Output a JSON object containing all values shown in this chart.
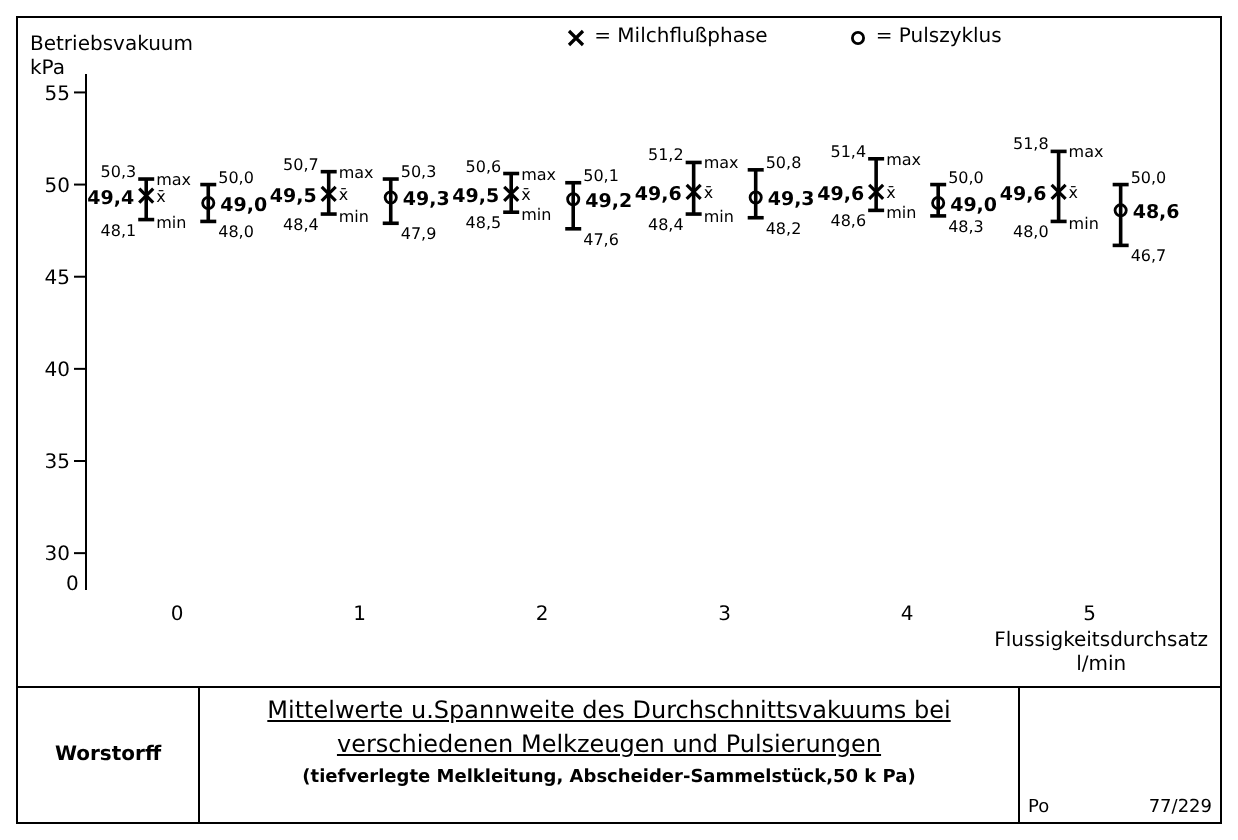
{
  "chart_data": {
    "type": "scatter",
    "title": "Mittelwerte u.Spannweite des Durchschnittsvakuums bei verschiedenen Melkzeugen und Pulsierungen",
    "subtitle": "(tiefverlegte Melkleitung, Abscheider-Sammelstück,50 k Pa)",
    "ylabel": "Betriebsvakuum\nkPa",
    "xlabel": "Flussigkeitsdurchsatz\nl/min",
    "categories": [
      "0",
      "1",
      "2",
      "3",
      "4",
      "5"
    ],
    "series": [
      {
        "name": "= Milchflußphase",
        "color": "#000000",
        "marker": "cross",
        "values": [
          49.4,
          49.5,
          49.5,
          49.6,
          49.6,
          49.6
        ],
        "errors": [
          [
            48.1,
            50.3
          ],
          [
            48.4,
            50.7
          ],
          [
            48.5,
            50.6
          ],
          [
            48.4,
            51.2
          ],
          [
            48.6,
            51.4
          ],
          [
            48.0,
            51.8
          ]
        ],
        "value_labels": [
          "49,4",
          "49,5",
          "49,5",
          "49,6",
          "49,6",
          "49,6"
        ]
      },
      {
        "name": "= Pulszyklus",
        "color": "#000000",
        "marker": "circle",
        "values": [
          49.0,
          49.3,
          49.2,
          49.3,
          49.0,
          48.6
        ],
        "errors": [
          [
            48.0,
            50.0
          ],
          [
            47.9,
            50.3
          ],
          [
            47.6,
            50.1
          ],
          [
            48.2,
            50.8
          ],
          [
            48.3,
            50.0
          ],
          [
            46.7,
            50.0
          ]
        ],
        "value_labels": [
          "49,0",
          "49,3",
          "49,2",
          "49,3",
          "49,0",
          "48,6"
        ]
      }
    ],
    "ylim": [
      28,
      56
    ],
    "yticks": [
      30,
      35,
      40,
      45,
      50,
      55
    ],
    "legend": "top",
    "data_labels": true,
    "annotations": [
      "max",
      "x̄",
      "min",
      "Worstorff",
      "Po",
      "77/229",
      "0",
      "50,3",
      "48,1",
      "50,0",
      "48,0",
      "50,7",
      "48,4",
      "50,3",
      "47,9",
      "50,6",
      "48,5",
      "50,1",
      "47,6",
      "51,2",
      "48,4",
      "50,8",
      "48,2",
      "51,4",
      "48,6",
      "50,0",
      "48,3",
      "51,8",
      "48,0",
      "50,0",
      "46,7"
    ]
  }
}
